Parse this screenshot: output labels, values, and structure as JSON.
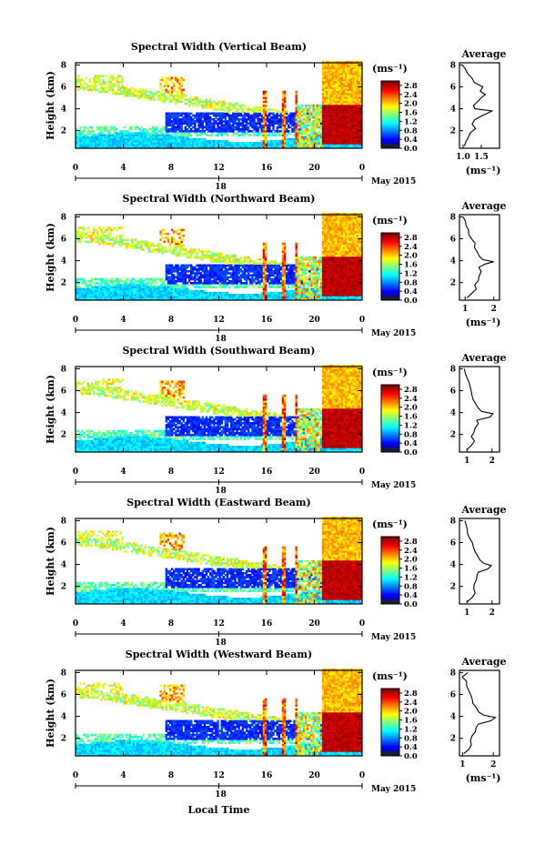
{
  "chart_data": [
    {
      "type": "heatmap",
      "title": "Spectral Width (Vertical Beam)",
      "beam": "vertical",
      "xlabel": "",
      "ylabel": "Height (km)",
      "xticks": [
        "0",
        "4",
        "8",
        "12",
        "16",
        "20",
        "0"
      ],
      "xlim": [
        0,
        24
      ],
      "yticks": [
        "2",
        "4",
        "6",
        "8"
      ],
      "ylim": [
        0.4,
        8.2
      ],
      "date_label": "May 2015",
      "date_tick": "18",
      "colorbar": {
        "label": "(ms⁻¹)",
        "ticks": [
          "0.0",
          "0.4",
          "0.8",
          "1.2",
          "1.6",
          "2.0",
          "2.4",
          "2.8"
        ],
        "range": [
          0,
          3.0
        ]
      },
      "average": {
        "title": "Average",
        "xlabel": "(ms⁻¹)",
        "xticks": [
          "1.0",
          "1.5"
        ],
        "xlim": [
          0.9,
          2.0
        ],
        "yticks": [
          "2",
          "4",
          "6",
          "8"
        ],
        "ylim": [
          0.4,
          8.2
        ],
        "profile": [
          [
            0.6,
            1.05
          ],
          [
            1.0,
            1.1
          ],
          [
            1.4,
            1.12
          ],
          [
            1.8,
            1.2
          ],
          [
            2.2,
            1.35
          ],
          [
            2.6,
            1.25
          ],
          [
            3.0,
            1.3
          ],
          [
            3.3,
            1.45
          ],
          [
            3.6,
            1.7
          ],
          [
            3.8,
            1.78
          ],
          [
            4.0,
            1.35
          ],
          [
            4.3,
            1.3
          ],
          [
            4.6,
            1.38
          ],
          [
            5.0,
            1.5
          ],
          [
            5.3,
            1.62
          ],
          [
            5.6,
            1.45
          ],
          [
            6.0,
            1.55
          ],
          [
            6.4,
            1.3
          ],
          [
            6.8,
            1.22
          ],
          [
            7.2,
            1.15
          ],
          [
            7.6,
            1.05
          ],
          [
            8.0,
            1.0
          ]
        ]
      }
    },
    {
      "type": "heatmap",
      "title": "Spectral Width (Northward Beam)",
      "beam": "northward",
      "xlabel": "",
      "ylabel": "Height (km)",
      "xticks": [
        "0",
        "4",
        "8",
        "12",
        "16",
        "20",
        "0"
      ],
      "xlim": [
        0,
        24
      ],
      "yticks": [
        "2",
        "4",
        "6",
        "8"
      ],
      "ylim": [
        0.4,
        8.2
      ],
      "date_label": "May 2015",
      "date_tick": "18",
      "colorbar": {
        "label": "(ms⁻¹)",
        "ticks": [
          "0.0",
          "0.4",
          "0.8",
          "1.2",
          "1.6",
          "2.0",
          "2.4",
          "2.8"
        ],
        "range": [
          0,
          3.0
        ]
      },
      "average": {
        "title": "Average",
        "xlabel": "(ms⁻¹)",
        "xticks": [
          "1",
          "2"
        ],
        "xlim": [
          0.8,
          2.2
        ],
        "yticks": [
          "2",
          "4",
          "6",
          "8"
        ],
        "ylim": [
          0.4,
          8.2
        ],
        "profile": [
          [
            0.6,
            1.05
          ],
          [
            1.0,
            1.25
          ],
          [
            1.4,
            1.4
          ],
          [
            1.8,
            1.35
          ],
          [
            2.2,
            1.45
          ],
          [
            2.6,
            1.5
          ],
          [
            3.0,
            1.55
          ],
          [
            3.4,
            1.5
          ],
          [
            3.7,
            1.7
          ],
          [
            3.9,
            2.0
          ],
          [
            4.1,
            1.6
          ],
          [
            4.4,
            1.5
          ],
          [
            4.8,
            1.45
          ],
          [
            5.2,
            1.3
          ],
          [
            5.6,
            1.35
          ],
          [
            6.0,
            1.2
          ],
          [
            6.4,
            1.15
          ],
          [
            6.8,
            1.1
          ],
          [
            7.2,
            1.05
          ],
          [
            7.6,
            1.0
          ],
          [
            8.0,
            0.95
          ]
        ]
      }
    },
    {
      "type": "heatmap",
      "title": "Spectral Width (Southward Beam)",
      "beam": "southward",
      "xlabel": "",
      "ylabel": "Height (km)",
      "xticks": [
        "0",
        "4",
        "8",
        "12",
        "16",
        "20",
        "0"
      ],
      "xlim": [
        0,
        24
      ],
      "yticks": [
        "2",
        "4",
        "6",
        "8"
      ],
      "ylim": [
        0.4,
        8.2
      ],
      "date_label": "May 2015",
      "date_tick": "18",
      "colorbar": {
        "label": "(ms⁻¹)",
        "ticks": [
          "0.0",
          "0.4",
          "0.8",
          "1.2",
          "1.6",
          "2.0",
          "2.4",
          "2.8"
        ],
        "range": [
          0,
          3.0
        ]
      },
      "average": {
        "title": "Average",
        "xlabel": "",
        "xticks": [
          "1",
          "2"
        ],
        "xlim": [
          0.7,
          2.3
        ],
        "yticks": [
          "2",
          "4",
          "6",
          "8"
        ],
        "ylim": [
          0.4,
          8.2
        ],
        "profile": [
          [
            0.6,
            1.0
          ],
          [
            1.0,
            1.15
          ],
          [
            1.4,
            1.3
          ],
          [
            1.8,
            1.2
          ],
          [
            2.2,
            1.25
          ],
          [
            2.6,
            1.35
          ],
          [
            3.0,
            1.45
          ],
          [
            3.3,
            1.4
          ],
          [
            3.6,
            1.9
          ],
          [
            3.9,
            2.05
          ],
          [
            4.1,
            1.6
          ],
          [
            4.4,
            1.45
          ],
          [
            4.8,
            1.35
          ],
          [
            5.2,
            1.25
          ],
          [
            5.6,
            1.2
          ],
          [
            6.0,
            1.15
          ],
          [
            6.4,
            1.1
          ],
          [
            6.8,
            1.05
          ],
          [
            7.2,
            1.0
          ],
          [
            7.6,
            0.95
          ],
          [
            8.0,
            0.9
          ]
        ]
      }
    },
    {
      "type": "heatmap",
      "title": "Spectral Width (Eastward Beam)",
      "beam": "eastward",
      "xlabel": "",
      "ylabel": "Height (km)",
      "xticks": [
        "0",
        "4",
        "8",
        "12",
        "16",
        "20",
        "0"
      ],
      "xlim": [
        0,
        24
      ],
      "yticks": [
        "2",
        "4",
        "6",
        "8"
      ],
      "ylim": [
        0.4,
        8.2
      ],
      "date_label": "May 2015",
      "date_tick": "18",
      "colorbar": {
        "label": "(ms⁻¹)",
        "ticks": [
          "0.0",
          "0.4",
          "0.8",
          "1.2",
          "1.6",
          "2.0",
          "2.4",
          "2.8"
        ],
        "range": [
          0,
          3.0
        ]
      },
      "average": {
        "title": "Average",
        "xlabel": "",
        "xticks": [
          "1",
          "2"
        ],
        "xlim": [
          0.7,
          2.3
        ],
        "yticks": [
          "2",
          "4",
          "6",
          "8"
        ],
        "ylim": [
          0.4,
          8.2
        ],
        "profile": [
          [
            0.6,
            1.0
          ],
          [
            1.0,
            1.2
          ],
          [
            1.4,
            1.3
          ],
          [
            1.8,
            1.25
          ],
          [
            2.2,
            1.3
          ],
          [
            2.6,
            1.35
          ],
          [
            3.0,
            1.4
          ],
          [
            3.3,
            1.45
          ],
          [
            3.6,
            1.85
          ],
          [
            3.9,
            2.0
          ],
          [
            4.1,
            1.65
          ],
          [
            4.4,
            1.5
          ],
          [
            4.8,
            1.4
          ],
          [
            5.2,
            1.3
          ],
          [
            5.6,
            1.25
          ],
          [
            6.0,
            1.2
          ],
          [
            6.4,
            1.1
          ],
          [
            6.8,
            1.05
          ],
          [
            7.2,
            1.0
          ],
          [
            7.6,
            0.95
          ],
          [
            8.0,
            0.9
          ]
        ]
      }
    },
    {
      "type": "heatmap",
      "title": "Spectral Width (Westward Beam)",
      "beam": "westward",
      "xlabel": "Local Time",
      "ylabel": "Height (km)",
      "xticks": [
        "0",
        "4",
        "8",
        "12",
        "16",
        "20",
        "0"
      ],
      "xlim": [
        0,
        24
      ],
      "yticks": [
        "2",
        "4",
        "6",
        "8"
      ],
      "ylim": [
        0.4,
        8.2
      ],
      "date_label": "May 2015",
      "date_tick": "18",
      "colorbar": {
        "label": "(ms⁻¹)",
        "ticks": [
          "0.0",
          "0.4",
          "0.8",
          "1.2",
          "1.6",
          "2.0",
          "2.4",
          "2.8"
        ],
        "range": [
          0,
          3.0
        ]
      },
      "average": {
        "title": "Average",
        "xlabel": "(ms⁻¹)",
        "xticks": [
          "1",
          "2"
        ],
        "xlim": [
          0.9,
          2.2
        ],
        "yticks": [
          "2",
          "4",
          "6",
          "8"
        ],
        "ylim": [
          0.4,
          8.2
        ],
        "profile": [
          [
            0.6,
            1.05
          ],
          [
            1.0,
            1.2
          ],
          [
            1.4,
            1.3
          ],
          [
            1.8,
            1.25
          ],
          [
            2.2,
            1.3
          ],
          [
            2.6,
            1.4
          ],
          [
            3.0,
            1.45
          ],
          [
            3.3,
            1.5
          ],
          [
            3.6,
            1.9
          ],
          [
            3.9,
            2.05
          ],
          [
            4.1,
            1.7
          ],
          [
            4.4,
            1.55
          ],
          [
            4.8,
            1.45
          ],
          [
            5.2,
            1.35
          ],
          [
            5.6,
            1.3
          ],
          [
            6.0,
            1.25
          ],
          [
            6.4,
            1.2
          ],
          [
            6.8,
            1.15
          ],
          [
            7.2,
            1.1
          ],
          [
            7.6,
            1.0
          ],
          [
            8.0,
            1.2
          ]
        ]
      }
    }
  ]
}
